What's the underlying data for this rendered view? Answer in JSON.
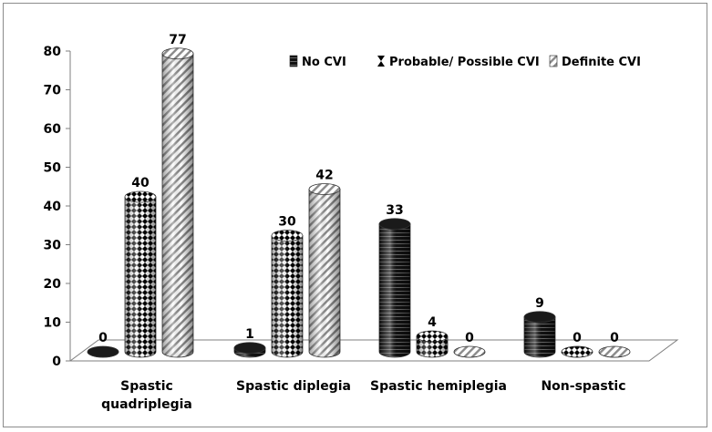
{
  "chart_data": {
    "type": "bar",
    "title": "",
    "xlabel": "",
    "ylabel": "",
    "ylim": [
      0,
      80
    ],
    "yticks": [
      0,
      10,
      20,
      30,
      40,
      50,
      60,
      70,
      80
    ],
    "categories": [
      [
        "Spastic",
        "quadriplegia"
      ],
      [
        "Spastic diplegia"
      ],
      [
        "Spastic hemiplegia"
      ],
      [
        "Non-spastic"
      ]
    ],
    "series": [
      {
        "name": "No CVI",
        "pattern": "black-stripes",
        "values": [
          0,
          1,
          33,
          9
        ]
      },
      {
        "name": "Probable/ Possible CVI",
        "pattern": "diamonds",
        "values": [
          40,
          30,
          4,
          0
        ]
      },
      {
        "name": "Definite CVI",
        "pattern": "diagonal",
        "values": [
          77,
          42,
          0,
          0
        ]
      }
    ],
    "legend_position": "top-right"
  }
}
